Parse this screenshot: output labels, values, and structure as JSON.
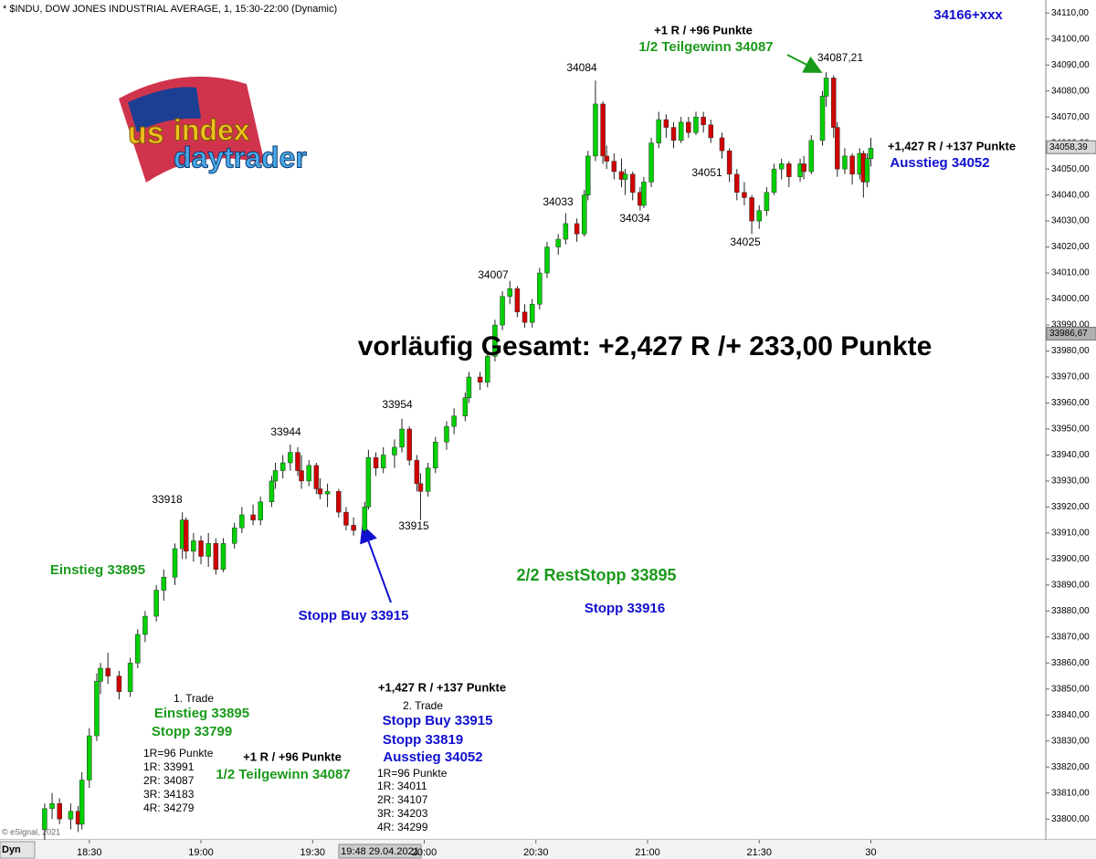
{
  "chart_data": {
    "type": "candlestick",
    "title": "* $INDU, DOW JONES INDUSTRIAL AVERAGE, 1, 15:30-22:00 (Dynamic)",
    "copyright": "© eSignal, 2021",
    "corner_label": "Dyn",
    "crosshair_label": "19:48 29.04.2021",
    "logo": [
      "us",
      "index",
      "daytrader"
    ],
    "up_color": "#00d000",
    "down_color": "#d00000",
    "xlim": [
      1086,
      1367
    ],
    "ylim": [
      33792,
      34115
    ],
    "xticks": [
      {
        "value": 1110,
        "label": "18:30"
      },
      {
        "value": 1140,
        "label": "19:00"
      },
      {
        "value": 1170,
        "label": "19:30"
      },
      {
        "value": 1200,
        "label": "20:00"
      },
      {
        "value": 1230,
        "label": "20:30"
      },
      {
        "value": 1260,
        "label": "21:00"
      },
      {
        "value": 1290,
        "label": "21:30"
      },
      {
        "value": 1320,
        "label": "30"
      }
    ],
    "yticks": [
      {
        "value": 34110,
        "label": "34110,00"
      },
      {
        "value": 34100,
        "label": "34100,00"
      },
      {
        "value": 34090,
        "label": "34090,00"
      },
      {
        "value": 34080,
        "label": "34080,00"
      },
      {
        "value": 34070,
        "label": "34070,00"
      },
      {
        "value": 34060,
        "label": "34060,00"
      },
      {
        "value": 34050,
        "label": "34050,00"
      },
      {
        "value": 34040,
        "label": "34040,00"
      },
      {
        "value": 34030,
        "label": "34030,00"
      },
      {
        "value": 34020,
        "label": "34020,00"
      },
      {
        "value": 34010,
        "label": "34010,00"
      },
      {
        "value": 34000,
        "label": "34000,00"
      },
      {
        "value": 33990,
        "label": "33990,00"
      },
      {
        "value": 33980,
        "label": "33980,00"
      },
      {
        "value": 33970,
        "label": "33970,00"
      },
      {
        "value": 33960,
        "label": "33960,00"
      },
      {
        "value": 33950,
        "label": "33950,00"
      },
      {
        "value": 33940,
        "label": "33940,00"
      },
      {
        "value": 33930,
        "label": "33930,00"
      },
      {
        "value": 33920,
        "label": "33920,00"
      },
      {
        "value": 33910,
        "label": "33910,00"
      },
      {
        "value": 33900,
        "label": "33900,00"
      },
      {
        "value": 33890,
        "label": "33890,00"
      },
      {
        "value": 33880,
        "label": "33880,00"
      },
      {
        "value": 33870,
        "label": "33870,00"
      },
      {
        "value": 33860,
        "label": "33860,00"
      },
      {
        "value": 33850,
        "label": "33850,00"
      },
      {
        "value": 33840,
        "label": "33840,00"
      },
      {
        "value": 33830,
        "label": "33830,00"
      },
      {
        "value": 33820,
        "label": "33820,00"
      },
      {
        "value": 33810,
        "label": "33810,00"
      },
      {
        "value": 33800,
        "label": "33800,00"
      }
    ],
    "price_markers": [
      {
        "value": 34058.39,
        "label": "34058,39"
      },
      {
        "value": 33986.67,
        "label": "33986,67"
      }
    ],
    "x": [
      1098,
      1100,
      1102,
      1105,
      1107,
      1108,
      1110,
      1112,
      1113,
      1115,
      1118,
      1121,
      1123,
      1125,
      1128,
      1130,
      1133,
      1135,
      1136,
      1138,
      1140,
      1142,
      1144,
      1146,
      1149,
      1151,
      1154,
      1156,
      1159,
      1160,
      1162,
      1164,
      1166,
      1167,
      1169,
      1171,
      1172,
      1174,
      1177,
      1179,
      1181,
      1184,
      1185,
      1187,
      1189,
      1192,
      1194,
      1196,
      1198,
      1199,
      1201,
      1203,
      1206,
      1208,
      1211,
      1212,
      1215,
      1217,
      1219,
      1221,
      1223,
      1225,
      1227,
      1229,
      1231,
      1233,
      1236,
      1238,
      1241,
      1243,
      1244,
      1246,
      1248,
      1249,
      1251,
      1253,
      1254,
      1256,
      1258,
      1259,
      1261,
      1263,
      1265,
      1267,
      1269,
      1271,
      1273,
      1275,
      1277,
      1280,
      1282,
      1284,
      1286,
      1288,
      1290,
      1292,
      1294,
      1296,
      1298,
      1301,
      1302,
      1304,
      1307,
      1308,
      1310,
      1311,
      1313,
      1315,
      1317,
      1318,
      1319,
      1320
    ],
    "open": [
      33796,
      33804,
      33806,
      33800,
      33803,
      33798,
      33815,
      33832,
      33853,
      33858,
      33855,
      33849,
      33860,
      33871,
      33878,
      33888,
      33893,
      33904,
      33915,
      33903,
      33907,
      33901,
      33906,
      33896,
      33906,
      33912,
      33917,
      33915,
      33922,
      33930,
      33934,
      33937,
      33941,
      33934,
      33930,
      33936,
      33927,
      33925,
      33926,
      33918,
      33913,
      33911,
      33920,
      33939,
      33935,
      33940,
      33943,
      33950,
      33938,
      33929,
      33926,
      33935,
      33945,
      33951,
      33955,
      33962,
      33970,
      33968,
      33978,
      33990,
      34001,
      34004,
      33995,
      33991,
      33998,
      34010,
      34020,
      34023,
      34029,
      34025,
      34040,
      34055,
      34075,
      34055,
      34053,
      34049,
      34046,
      34048,
      34041,
      34036,
      34045,
      34060,
      34069,
      34066,
      34061,
      34068,
      34064,
      34070,
      34067,
      34062,
      34057,
      34048,
      34041,
      34039,
      34030,
      34034,
      34041,
      34050,
      34052,
      34047,
      34052,
      34049,
      34061,
      34078,
      34085,
      34066,
      34050,
      34055,
      34048,
      34056,
      34045,
      34054
    ],
    "high": [
      33806,
      33810,
      33808,
      33806,
      33805,
      33818,
      33835,
      33856,
      33860,
      33864,
      33857,
      33862,
      33873,
      33880,
      33890,
      33896,
      33906,
      33918,
      33916,
      33910,
      33909,
      33910,
      33908,
      33908,
      33914,
      33920,
      33921,
      33924,
      33932,
      33937,
      33940,
      33944,
      33943,
      33940,
      33938,
      33937,
      33931,
      33929,
      33927,
      33920,
      33916,
      33922,
      33942,
      33941,
      33943,
      33946,
      33954,
      33951,
      33940,
      33933,
      33937,
      33947,
      33953,
      33958,
      33964,
      33972,
      33972,
      33980,
      33992,
      34003,
      34007,
      34005,
      33998,
      34000,
      34012,
      34022,
      34025,
      34033,
      34031,
      34042,
      34057,
      34084,
      34076,
      34059,
      34056,
      34054,
      34050,
      34049,
      34043,
      34047,
      34062,
      34072,
      34071,
      34068,
      34070,
      34070,
      34072,
      34072,
      34069,
      34064,
      34058,
      34050,
      34045,
      34040,
      34036,
      34043,
      34052,
      34054,
      34053,
      34054,
      34055,
      34063,
      34080,
      34087.21,
      34086,
      34068,
      34058,
      34056,
      34058,
      34057,
      34056,
      34062
    ],
    "low": [
      33792,
      33800,
      33798,
      33796,
      33795,
      33796,
      33812,
      33830,
      33848,
      33852,
      33846,
      33847,
      33858,
      33868,
      33876,
      33884,
      33890,
      33900,
      33900,
      33899,
      33898,
      33897,
      33894,
      33895,
      33904,
      33910,
      33913,
      33913,
      33920,
      33927,
      33931,
      33934,
      33932,
      33927,
      33928,
      33925,
      33923,
      33920,
      33916,
      33911,
      33909,
      33910,
      33919,
      33932,
      33933,
      33935,
      33941,
      33936,
      33926,
      33915,
      33924,
      33933,
      33942,
      33948,
      33953,
      33960,
      33965,
      33966,
      33976,
      33988,
      33998,
      33993,
      33989,
      33989,
      33996,
      34008,
      34017,
      34021,
      34022,
      34024,
      34038,
      34053,
      34052,
      34050,
      34046,
      34043,
      34040,
      34038,
      34034,
      34035,
      34043,
      34058,
      34062,
      34058,
      34060,
      34062,
      34063,
      34064,
      34060,
      34054,
      34045,
      34038,
      34036,
      34025,
      34027,
      34032,
      34040,
      34046,
      34043,
      34045,
      34046,
      34048,
      34059,
      34074,
      34062,
      34047,
      34048,
      34044,
      34046,
      34039,
      34043,
      34051
    ],
    "close": [
      33804,
      33806,
      33800,
      33803,
      33798,
      33815,
      33832,
      33853,
      33858,
      33855,
      33849,
      33860,
      33871,
      33878,
      33888,
      33893,
      33904,
      33915,
      33903,
      33907,
      33901,
      33906,
      33896,
      33906,
      33912,
      33917,
      33915,
      33922,
      33930,
      33934,
      33937,
      33941,
      33934,
      33930,
      33936,
      33927,
      33925,
      33926,
      33918,
      33913,
      33911,
      33920,
      33939,
      33935,
      33940,
      33943,
      33950,
      33938,
      33929,
      33926,
      33935,
      33945,
      33951,
      33955,
      33962,
      33970,
      33968,
      33978,
      33990,
      34001,
      34004,
      33995,
      33991,
      33998,
      34010,
      34020,
      34023,
      34029,
      34025,
      34040,
      34055,
      34075,
      34055,
      34053,
      34049,
      34046,
      34048,
      34041,
      34036,
      34045,
      34060,
      34069,
      34066,
      34061,
      34068,
      34064,
      34070,
      34067,
      34062,
      34057,
      34048,
      34041,
      34039,
      34030,
      34034,
      34041,
      34050,
      34052,
      34047,
      34052,
      34049,
      34061,
      34078,
      34085,
      34066,
      34050,
      34055,
      34048,
      34056,
      34045,
      34054,
      34058
    ],
    "annotations": [
      {
        "text": "+1 R / +96 Punkte",
        "color": "#000000"
      },
      {
        "text": "1/2 Teilgewinn 34087",
        "color": "#1a9a1a"
      },
      {
        "text": "34166+xxx",
        "color": "#1010d0"
      },
      {
        "text": "34087,21",
        "color": "#000000"
      },
      {
        "text": "+1,427 R / +137 Punkte",
        "color": "#000000"
      },
      {
        "text": "Ausstieg 34052",
        "color": "#1010d0"
      },
      {
        "text": "34084",
        "color": "#000000"
      },
      {
        "text": "34033",
        "color": "#000000"
      },
      {
        "text": "34034",
        "color": "#000000"
      },
      {
        "text": "34051",
        "color": "#000000"
      },
      {
        "text": "34025",
        "color": "#000000"
      },
      {
        "text": "34007",
        "color": "#000000"
      },
      {
        "text": "vorläufig Gesamt: +2,427 R /+ 233,00 Punkte",
        "color": "#000000"
      },
      {
        "text": "33954",
        "color": "#000000"
      },
      {
        "text": "33944",
        "color": "#000000"
      },
      {
        "text": "33918",
        "color": "#000000"
      },
      {
        "text": "33915",
        "color": "#000000"
      },
      {
        "text": "Einstieg 33895",
        "color": "#1a9a1a"
      },
      {
        "text": "2/2 RestStopp 33895",
        "color": "#1a9a1a"
      },
      {
        "text": "Stopp Buy 33915",
        "color": "#1010d0"
      },
      {
        "text": "Stopp 33916",
        "color": "#1010d0"
      },
      {
        "text": "1. Trade",
        "color": "#000000"
      },
      {
        "text": "Einstieg 33895",
        "color": "#1a9a1a"
      },
      {
        "text": "Stopp 33799",
        "color": "#1a9a1a"
      },
      {
        "text": "1R=96 Punkte",
        "color": "#000000"
      },
      {
        "text": "1R: 33991",
        "color": "#000000"
      },
      {
        "text": "2R: 34087",
        "color": "#000000"
      },
      {
        "text": "3R: 34183",
        "color": "#000000"
      },
      {
        "text": "4R: 34279",
        "color": "#000000"
      },
      {
        "text": "+1 R / +96 Punkte",
        "color": "#000000"
      },
      {
        "text": "1/2 Teilgewinn 34087",
        "color": "#1a9a1a"
      },
      {
        "text": "+1,427 R / +137 Punkte",
        "color": "#000000"
      },
      {
        "text": "2. Trade",
        "color": "#000000"
      },
      {
        "text": "Stopp Buy 33915",
        "color": "#1010d0"
      },
      {
        "text": "Stopp 33819",
        "color": "#1010d0"
      },
      {
        "text": "Ausstieg 34052",
        "color": "#1010d0"
      },
      {
        "text": "1R=96 Punkte",
        "color": "#000000"
      },
      {
        "text": "1R: 34011",
        "color": "#000000"
      },
      {
        "text": "2R: 34107",
        "color": "#000000"
      },
      {
        "text": "3R: 34203",
        "color": "#000000"
      },
      {
        "text": "4R: 34299",
        "color": "#000000"
      }
    ]
  }
}
